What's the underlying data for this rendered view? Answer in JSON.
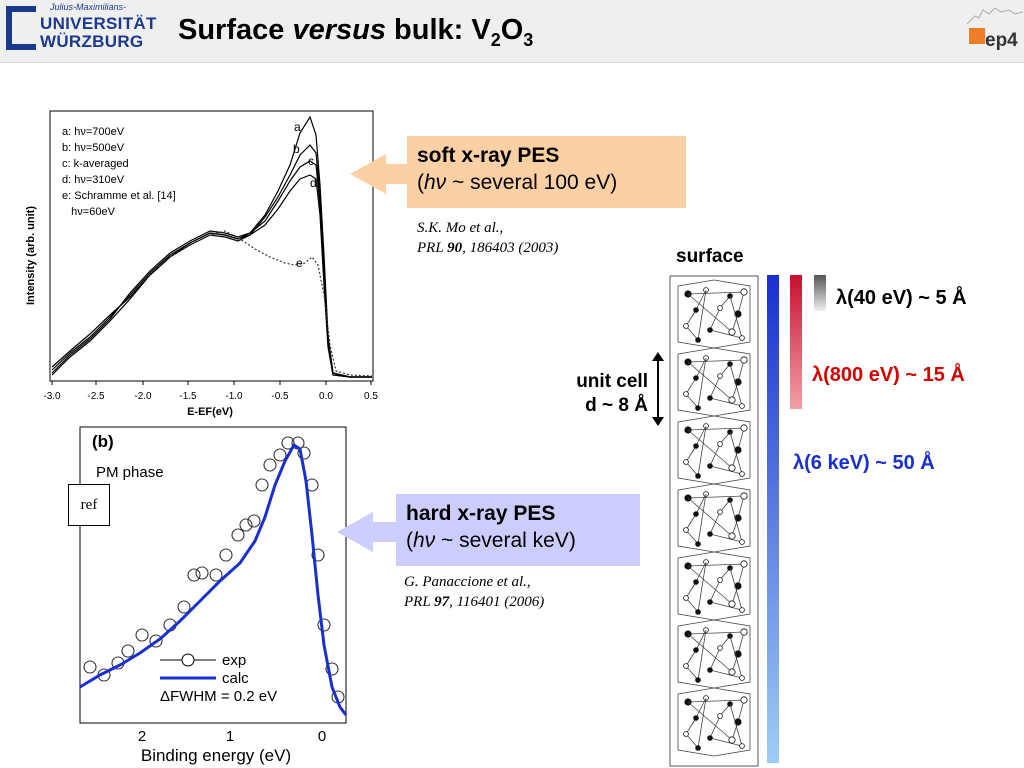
{
  "header": {
    "logo_small": "Julius-Maximilians-",
    "logo_line1": "UNIVERSITÄT",
    "logo_line2": "WÜRZBURG",
    "title_pre": "Surface ",
    "title_italic": "versus",
    "title_post": " bulk: V",
    "title_sub1": "2",
    "title_mid": "O",
    "title_sub2": "3",
    "ep4_label": "ep4"
  },
  "soft_panel": {
    "legend": [
      "a: hν=700eV",
      "b: hν=500eV",
      "c: k-averaged",
      "d: hν=310eV",
      "e: Schramme et al. [14]",
      "   hν=60eV"
    ],
    "ylabel": "Intensity (arb. unit)",
    "xlabel": "E-EF(eV)",
    "xticks": [
      "-3.0",
      "-2.5",
      "-2.0",
      "-1.5",
      "-1.0",
      "-0.5",
      "0.0",
      "0.5"
    ],
    "curve_labels": [
      "a",
      "b",
      "c",
      "d",
      "e"
    ]
  },
  "hard_panel": {
    "panel_label": "(b)",
    "phase": "PM phase",
    "ref_label": "ref",
    "legend_exp": "exp",
    "legend_calc": "calc",
    "legend_fwhm": "ΔFWHM = 0.2 eV",
    "xlabel": "Binding energy (eV)",
    "xticks": [
      "2",
      "1",
      "0"
    ]
  },
  "soft_box": {
    "line1": "soft x-ray  PES",
    "line2_pre": "(",
    "line2_italic": "hν",
    "line2_post": " ~  several 100 eV)",
    "color": "#fbd0a4"
  },
  "soft_ref": {
    "line1": "S.K. Mo et al.,",
    "journal": "PRL ",
    "volume": "90",
    "rest": ", 186403 (2003)"
  },
  "hard_box": {
    "line1": "hard x-ray  PES",
    "line2_pre": "(",
    "line2_italic": "hν",
    "line2_post": " ~  several keV)",
    "color": "#cccdfc"
  },
  "hard_ref": {
    "line1": "G. Panaccione et al.,",
    "journal": "PRL ",
    "volume": "97",
    "rest": ", 116401 (2006)"
  },
  "structure": {
    "surface_label": "surface",
    "unit_cell_line1": "unit cell",
    "unit_cell_line2": "d ~ 8 Å"
  },
  "depths": [
    {
      "text": "λ(40 eV) ~ 5 Å",
      "color": "#000000"
    },
    {
      "text": "λ(800 eV) ~ 15 Å",
      "color": "#d40000"
    },
    {
      "text": "λ(6 keV) ~ 50 Å",
      "color": "#1a2fd0"
    }
  ]
}
